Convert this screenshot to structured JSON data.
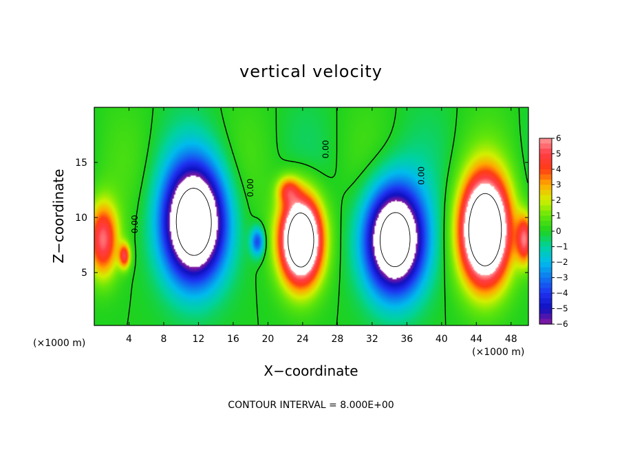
{
  "chart_data": {
    "type": "heatmap",
    "title": "vertical velocity",
    "xlabel": "X−coordinate",
    "ylabel": "Z−coordinate",
    "x_unit_left": "(×1000 m)",
    "x_unit_right": "(×1000 m)",
    "footer": "CONTOUR INTERVAL = 8.000E+00",
    "xlim": [
      0,
      50
    ],
    "ylim": [
      0.2,
      20
    ],
    "x_ticks": [
      4,
      8,
      12,
      16,
      20,
      24,
      28,
      32,
      36,
      40,
      44,
      48
    ],
    "x_tick_labels": [
      "4",
      "8",
      "12",
      "16",
      "20",
      "24",
      "28",
      "32",
      "36",
      "40",
      "44",
      "48"
    ],
    "y_ticks": [
      5,
      10,
      15
    ],
    "y_tick_labels": [
      "5",
      "10",
      "15"
    ],
    "colorbar": {
      "min": -6,
      "max": 6,
      "ticks": [
        6,
        5,
        4,
        3,
        2,
        1,
        0,
        -1,
        -2,
        -3,
        -4,
        -5,
        -6
      ],
      "tick_labels": [
        "6",
        "5",
        "4",
        "3",
        "2",
        "1",
        "0",
        "−1",
        "−2",
        "−3",
        "−4",
        "−5",
        "−6"
      ],
      "palette_stops": [
        {
          "v": -6,
          "color": "#8a1aa0"
        },
        {
          "v": -5,
          "color": "#1010c0"
        },
        {
          "v": -4,
          "color": "#1e32f0"
        },
        {
          "v": -3,
          "color": "#0f78f0"
        },
        {
          "v": -2,
          "color": "#00bcec"
        },
        {
          "v": -1,
          "color": "#00d2a0"
        },
        {
          "v": 0,
          "color": "#1ed21e"
        },
        {
          "v": 1,
          "color": "#64e60a"
        },
        {
          "v": 2,
          "color": "#d2f000"
        },
        {
          "v": 3,
          "color": "#ffaa00"
        },
        {
          "v": 4,
          "color": "#ff3c14"
        },
        {
          "v": 5,
          "color": "#ff3c46"
        },
        {
          "v": 6,
          "color": "#ff9a9a"
        }
      ],
      "over_color": "#ffffff",
      "under_color": "#ffffff"
    },
    "contour_labels": [
      {
        "text": "0.00",
        "x": 5.0,
        "y": 9.4
      },
      {
        "text": "0.00",
        "x": 18.3,
        "y": 12.7
      },
      {
        "text": "0.00",
        "x": 27.0,
        "y": 16.2
      },
      {
        "text": "0.00",
        "x": 38.0,
        "y": 13.8
      }
    ],
    "features": [
      {
        "kind": "updraft",
        "cx": 1.0,
        "cz": 8.0,
        "sx": 2.2,
        "sz": 4.2,
        "amp": 5.5
      },
      {
        "kind": "downdraft",
        "cx": 11.5,
        "cz": 9.5,
        "sx": 4.4,
        "sz": 6.5,
        "amp": -11.0
      },
      {
        "kind": "downdraft",
        "cx": 18.8,
        "cz": 7.8,
        "sx": 1.0,
        "sz": 1.6,
        "amp": -3.8
      },
      {
        "kind": "updraft",
        "cx": 23.8,
        "cz": 8.0,
        "sx": 3.0,
        "sz": 5.0,
        "amp": 12.0
      },
      {
        "kind": "updraft",
        "cx": 22.3,
        "cz": 12.5,
        "sx": 1.6,
        "sz": 1.6,
        "amp": 3.0
      },
      {
        "kind": "downdraft",
        "cx": 34.6,
        "cz": 8.0,
        "sx": 4.2,
        "sz": 6.0,
        "amp": -10.5
      },
      {
        "kind": "updraft",
        "cx": 45.0,
        "cz": 8.8,
        "sx": 3.5,
        "sz": 6.0,
        "amp": 12.5
      },
      {
        "kind": "updraft",
        "cx": 49.6,
        "cz": 8.0,
        "sx": 1.2,
        "sz": 2.8,
        "amp": 5.0
      },
      {
        "kind": "updraft",
        "cx": 3.5,
        "cz": 6.5,
        "sx": 0.8,
        "sz": 1.4,
        "amp": 4.5
      }
    ]
  }
}
